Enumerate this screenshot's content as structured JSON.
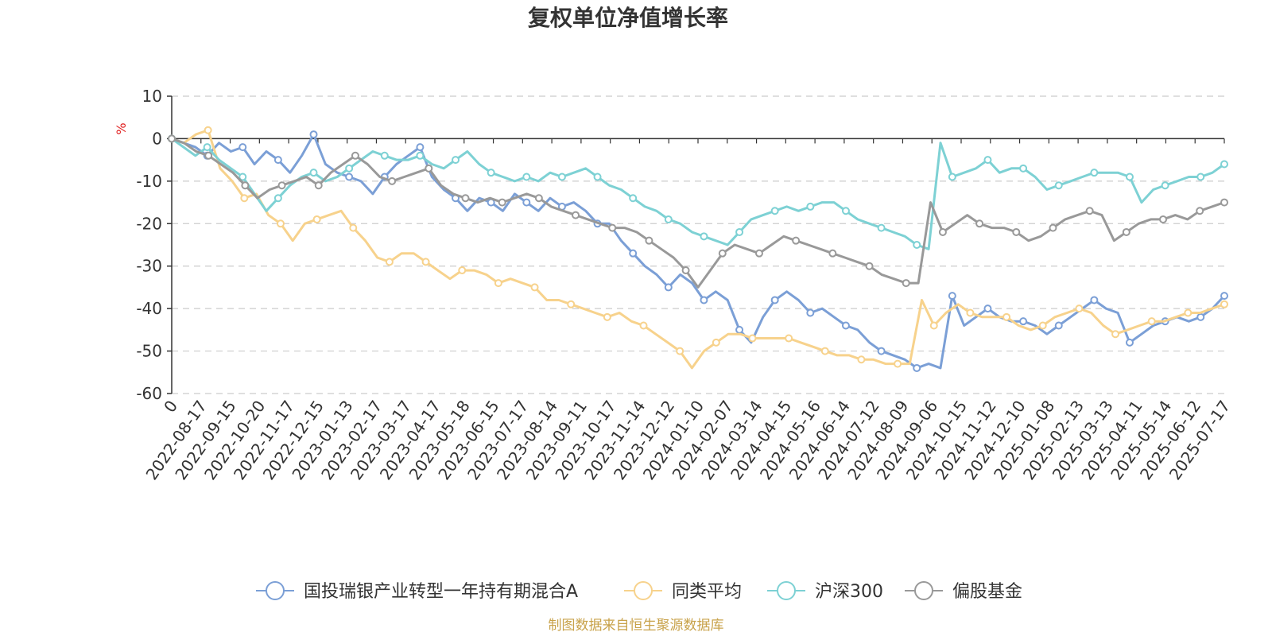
{
  "chart_data": {
    "type": "line",
    "title": "复权单位净值增长率",
    "ylabel": "%",
    "ylim": [
      -60,
      10
    ],
    "yticks": [
      10,
      0,
      -10,
      -20,
      -30,
      -40,
      -50,
      -60
    ],
    "grid": true,
    "legend_position": "bottom-center",
    "x_tick_labels": [
      "0",
      "2022-08-17",
      "2022-09-15",
      "2022-10-20",
      "2022-11-17",
      "2022-12-15",
      "2023-01-13",
      "2023-02-17",
      "2023-03-17",
      "2023-04-17",
      "2023-05-18",
      "2023-06-15",
      "2023-07-17",
      "2023-08-14",
      "2023-09-11",
      "2023-10-17",
      "2023-11-14",
      "2023-12-12",
      "2024-01-10",
      "2024-02-07",
      "2024-03-14",
      "2024-04-15",
      "2024-05-16",
      "2024-06-14",
      "2024-07-12",
      "2024-08-09",
      "2024-09-06",
      "2024-10-15",
      "2024-11-12",
      "2024-12-10",
      "2025-01-08",
      "2025-02-13",
      "2025-03-13",
      "2025-04-11",
      "2025-05-14",
      "2025-06-12",
      "2025-07-17"
    ],
    "series": [
      {
        "name": "国投瑞银产业转型一年持有期混合A",
        "color": "#7b9fd6",
        "values": [
          0,
          -1,
          -2,
          -4,
          -1,
          -3,
          -2,
          -6,
          -3,
          -5,
          -8,
          -4,
          1,
          -6,
          -8,
          -9,
          -10,
          -13,
          -9,
          -6,
          -4,
          -2,
          -9,
          -12,
          -14,
          -17,
          -14,
          -15,
          -17,
          -13,
          -15,
          -17,
          -14,
          -16,
          -15,
          -17,
          -20,
          -20,
          -24,
          -27,
          -30,
          -32,
          -35,
          -32,
          -34,
          -38,
          -36,
          -38,
          -45,
          -48,
          -42,
          -38,
          -36,
          -38,
          -41,
          -40,
          -42,
          -44,
          -45,
          -48,
          -50,
          -51,
          -52,
          -54,
          -53,
          -54,
          -37,
          -44,
          -42,
          -40,
          -42,
          -43,
          -43,
          -44,
          -46,
          -44,
          -42,
          -40,
          -38,
          -40,
          -41,
          -48,
          -46,
          -44,
          -43,
          -42,
          -43,
          -42,
          -40,
          -37
        ]
      },
      {
        "name": "同类平均",
        "color": "#f7d28c",
        "values": [
          0,
          -1,
          1,
          2,
          -7,
          -10,
          -14,
          -13,
          -18,
          -20,
          -24,
          -20,
          -19,
          -18,
          -17,
          -21,
          -24,
          -28,
          -29,
          -27,
          -27,
          -29,
          -31,
          -33,
          -31,
          -31,
          -32,
          -34,
          -33,
          -34,
          -35,
          -38,
          -38,
          -39,
          -40,
          -41,
          -42,
          -41,
          -43,
          -44,
          -46,
          -48,
          -50,
          -54,
          -50,
          -48,
          -46,
          -46,
          -47,
          -47,
          -47,
          -47,
          -48,
          -49,
          -50,
          -51,
          -51,
          -52,
          -52,
          -53,
          -53,
          -53,
          -38,
          -44,
          -41,
          -39,
          -41,
          -42,
          -42,
          -42,
          -44,
          -45,
          -44,
          -42,
          -41,
          -40,
          -41,
          -44,
          -46,
          -45,
          -44,
          -43,
          -43,
          -42,
          -41,
          -41,
          -40,
          -39
        ]
      },
      {
        "name": "沪深300",
        "color": "#7dd1d4",
        "values": [
          0,
          -2,
          -4,
          -2,
          -5,
          -7,
          -9,
          -13,
          -17,
          -14,
          -11,
          -9,
          -8,
          -10,
          -9,
          -7,
          -5,
          -3,
          -4,
          -5,
          -5,
          -4,
          -6,
          -7,
          -5,
          -3,
          -6,
          -8,
          -9,
          -10,
          -9,
          -10,
          -8,
          -9,
          -8,
          -7,
          -9,
          -11,
          -12,
          -14,
          -16,
          -17,
          -19,
          -20,
          -22,
          -23,
          -24,
          -25,
          -22,
          -19,
          -18,
          -17,
          -16,
          -17,
          -16,
          -15,
          -15,
          -17,
          -19,
          -20,
          -21,
          -22,
          -23,
          -25,
          -26,
          -1,
          -9,
          -8,
          -7,
          -5,
          -8,
          -7,
          -7,
          -9,
          -12,
          -11,
          -10,
          -9,
          -8,
          -8,
          -8,
          -9,
          -15,
          -12,
          -11,
          -10,
          -9,
          -9,
          -8,
          -6
        ]
      },
      {
        "name": "偏股基金",
        "color": "#999999",
        "values": [
          0,
          -1,
          -3,
          -4,
          -6,
          -8,
          -11,
          -14,
          -12,
          -11,
          -10,
          -9,
          -11,
          -8,
          -6,
          -4,
          -6,
          -9,
          -10,
          -9,
          -8,
          -7,
          -11,
          -13,
          -14,
          -15,
          -14,
          -15,
          -14,
          -13,
          -14,
          -16,
          -17,
          -18,
          -19,
          -20,
          -21,
          -21,
          -22,
          -24,
          -26,
          -28,
          -31,
          -35,
          -31,
          -27,
          -25,
          -26,
          -27,
          -25,
          -23,
          -24,
          -25,
          -26,
          -27,
          -28,
          -29,
          -30,
          -32,
          -33,
          -34,
          -34,
          -15,
          -22,
          -20,
          -18,
          -20,
          -21,
          -21,
          -22,
          -24,
          -23,
          -21,
          -19,
          -18,
          -17,
          -18,
          -24,
          -22,
          -20,
          -19,
          -19,
          -18,
          -19,
          -17,
          -16,
          -15
        ]
      }
    ]
  },
  "source_text": "制图数据来自恒生聚源数据库"
}
